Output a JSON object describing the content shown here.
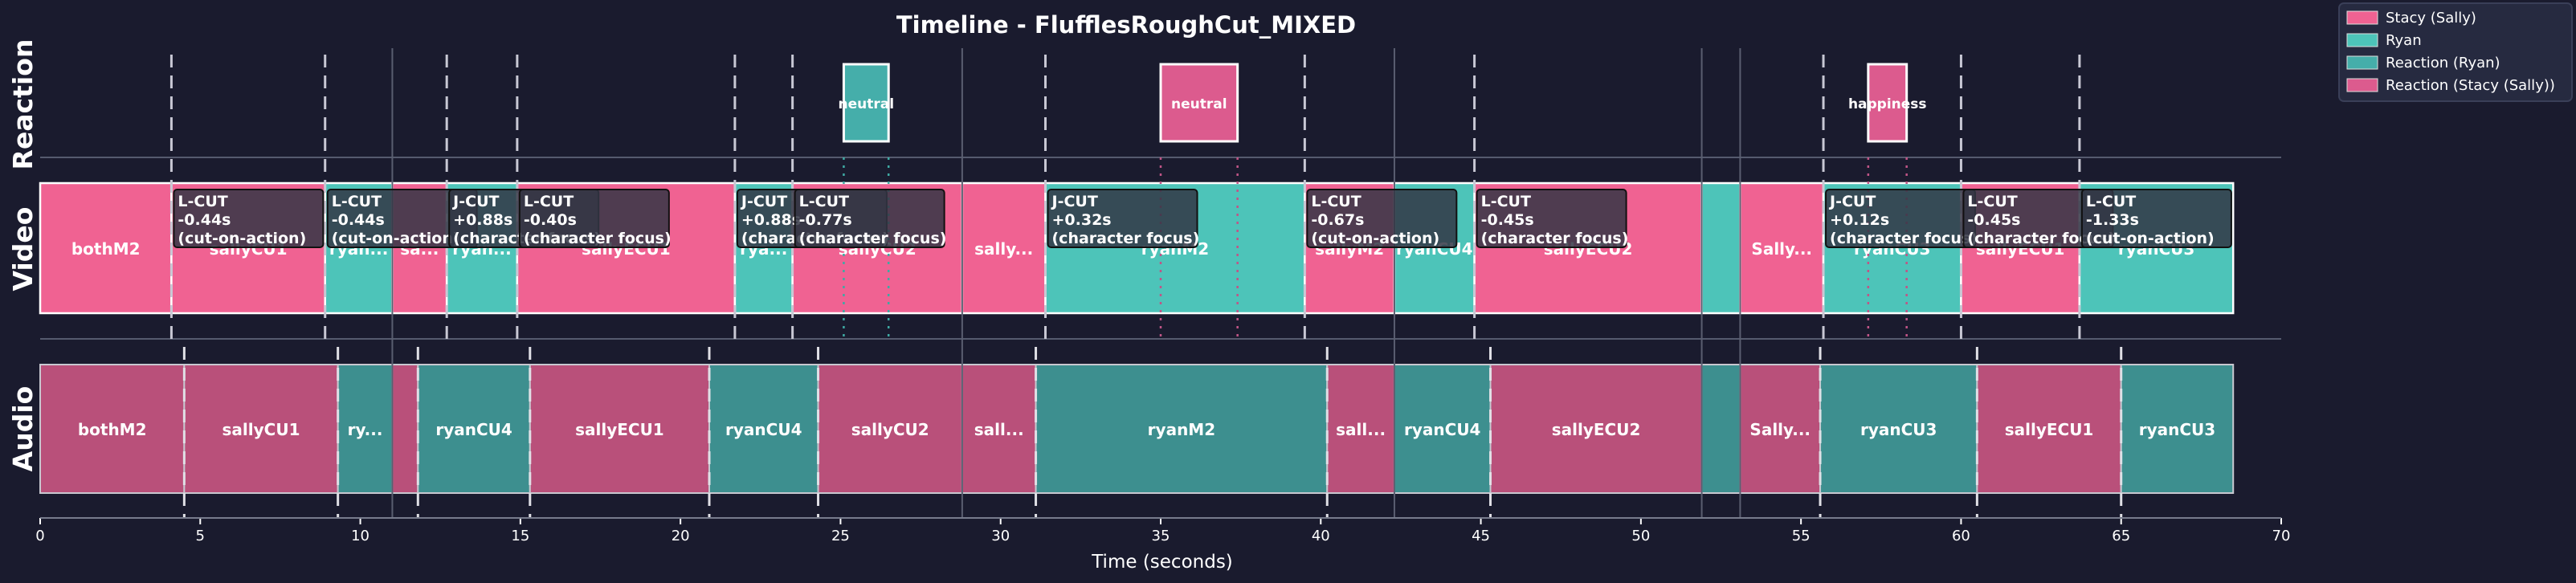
{
  "chart_data": {
    "type": "timeline",
    "title": "Timeline - FlufflesRoughCut_MIXED",
    "xlabel": "Time (seconds)",
    "xlim": [
      0,
      70
    ],
    "xticks": [
      0,
      5,
      10,
      15,
      20,
      25,
      30,
      35,
      40,
      45,
      50,
      55,
      60,
      65,
      70
    ],
    "tracks": [
      "Reaction",
      "Video",
      "Audio"
    ],
    "colors": {
      "background": "#1a1b2e",
      "stacy": "#f06292",
      "ryan": "#4dc4b9",
      "reaction_ryan": "#45aeaa",
      "reaction_stacy": "#dc5b8e",
      "audio_stacy": "#b9507a",
      "audio_ryan": "#3d8f8f"
    },
    "legend": {
      "position": "top-right",
      "items": [
        {
          "label": "Stacy (Sally)",
          "color": "#f06292"
        },
        {
          "label": "Ryan",
          "color": "#4dc4b9"
        },
        {
          "label": "Reaction (Ryan)",
          "color": "#45aeaa"
        },
        {
          "label": "Reaction (Stacy (Sally))",
          "color": "#dc5b8e"
        }
      ]
    },
    "reactions": [
      {
        "start": 25.1,
        "end": 26.5,
        "label": "neutral",
        "who": "ryan"
      },
      {
        "start": 35.0,
        "end": 37.4,
        "label": "neutral",
        "who": "stacy"
      },
      {
        "start": 57.1,
        "end": 58.3,
        "label": "happiness",
        "who": "stacy"
      }
    ],
    "video_clips": [
      {
        "start": 0.0,
        "end": 4.1,
        "label": "bothM2",
        "who": "stacy"
      },
      {
        "start": 4.1,
        "end": 8.9,
        "label": "sallyCU1",
        "who": "stacy"
      },
      {
        "start": 8.9,
        "end": 11.0,
        "label": "ryan...",
        "who": "ryan"
      },
      {
        "start": 11.0,
        "end": 12.7,
        "label": "sa...",
        "who": "stacy"
      },
      {
        "start": 12.7,
        "end": 14.9,
        "label": "ryan...",
        "who": "ryan"
      },
      {
        "start": 14.9,
        "end": 21.7,
        "label": "sallyECU1",
        "who": "stacy"
      },
      {
        "start": 21.7,
        "end": 23.5,
        "label": "rya...",
        "who": "ryan"
      },
      {
        "start": 23.5,
        "end": 28.8,
        "label": "sallyCU2",
        "who": "stacy"
      },
      {
        "start": 28.8,
        "end": 31.4,
        "label": "sally...",
        "who": "stacy"
      },
      {
        "start": 31.4,
        "end": 39.5,
        "label": "ryanM2",
        "who": "ryan"
      },
      {
        "start": 39.5,
        "end": 42.3,
        "label": "sallyM2",
        "who": "stacy"
      },
      {
        "start": 42.3,
        "end": 44.8,
        "label": "ryanCU4",
        "who": "ryan"
      },
      {
        "start": 44.8,
        "end": 51.9,
        "label": "sallyECU2",
        "who": "stacy"
      },
      {
        "start": 51.9,
        "end": 53.1,
        "label": "",
        "who": "ryan"
      },
      {
        "start": 53.1,
        "end": 55.7,
        "label": "Sally...",
        "who": "stacy"
      },
      {
        "start": 55.7,
        "end": 60.0,
        "label": "ryanCU3",
        "who": "ryan"
      },
      {
        "start": 60.0,
        "end": 63.7,
        "label": "sallyECU1",
        "who": "stacy"
      },
      {
        "start": 63.7,
        "end": 68.5,
        "label": "ryanCU3",
        "who": "ryan"
      }
    ],
    "audio_clips": [
      {
        "start": 0.0,
        "end": 4.5,
        "label": "bothM2",
        "who": "stacy"
      },
      {
        "start": 4.5,
        "end": 9.3,
        "label": "sallyCU1",
        "who": "stacy"
      },
      {
        "start": 9.3,
        "end": 11.0,
        "label": "ry...",
        "who": "ryan"
      },
      {
        "start": 11.0,
        "end": 11.8,
        "label": "",
        "who": "stacy"
      },
      {
        "start": 11.8,
        "end": 15.3,
        "label": "ryanCU4",
        "who": "ryan"
      },
      {
        "start": 15.3,
        "end": 20.9,
        "label": "sallyECU1",
        "who": "stacy"
      },
      {
        "start": 20.9,
        "end": 24.3,
        "label": "ryanCU4",
        "who": "ryan"
      },
      {
        "start": 24.3,
        "end": 28.8,
        "label": "sallyCU2",
        "who": "stacy"
      },
      {
        "start": 28.8,
        "end": 31.1,
        "label": "sall...",
        "who": "stacy"
      },
      {
        "start": 31.1,
        "end": 40.2,
        "label": "ryanM2",
        "who": "ryan"
      },
      {
        "start": 40.2,
        "end": 42.3,
        "label": "sall...",
        "who": "stacy"
      },
      {
        "start": 42.3,
        "end": 45.3,
        "label": "ryanCU4",
        "who": "ryan"
      },
      {
        "start": 45.3,
        "end": 51.9,
        "label": "sallyECU2",
        "who": "stacy"
      },
      {
        "start": 51.9,
        "end": 53.1,
        "label": "",
        "who": "ryan"
      },
      {
        "start": 53.1,
        "end": 55.6,
        "label": "Sally...",
        "who": "stacy"
      },
      {
        "start": 55.6,
        "end": 60.5,
        "label": "ryanCU3",
        "who": "ryan"
      },
      {
        "start": 60.5,
        "end": 65.0,
        "label": "sallyECU1",
        "who": "stacy"
      },
      {
        "start": 65.0,
        "end": 68.5,
        "label": "ryanCU3",
        "who": "ryan"
      }
    ],
    "section_boundaries": [
      11.0,
      28.8,
      42.3,
      51.9,
      53.1
    ],
    "cut_markers": [
      4.1,
      8.9,
      12.7,
      14.9,
      21.7,
      23.5,
      31.4,
      39.5,
      44.8,
      55.7,
      60.0,
      63.7
    ],
    "audio_markers": [
      4.5,
      9.3,
      11.8,
      15.3,
      20.9,
      24.3,
      31.1,
      40.2,
      45.3,
      55.6,
      60.5,
      65.0
    ],
    "reaction_guides": [
      {
        "x": 25.1,
        "who": "ryan"
      },
      {
        "x": 26.5,
        "who": "ryan"
      },
      {
        "x": 35.0,
        "who": "stacy"
      },
      {
        "x": 37.4,
        "who": "stacy"
      },
      {
        "x": 57.1,
        "who": "stacy"
      },
      {
        "x": 58.3,
        "who": "stacy"
      }
    ],
    "annotations": [
      {
        "x": 4.1,
        "lines": [
          "L-CUT",
          "-0.44s",
          "(cut-on-action)"
        ]
      },
      {
        "x": 8.9,
        "lines": [
          "L-CUT",
          "-0.44s",
          "(cut-on-action)"
        ]
      },
      {
        "x": 12.7,
        "lines": [
          "J-CUT",
          "+0.88s",
          "(character focus)"
        ]
      },
      {
        "x": 14.9,
        "lines": [
          "L-CUT",
          "-0.40s",
          "(character focus)"
        ]
      },
      {
        "x": 21.7,
        "lines": [
          "J-CUT",
          "+0.88s",
          "(character focus)"
        ]
      },
      {
        "x": 23.5,
        "lines": [
          "L-CUT",
          "-0.77s",
          "(character focus)"
        ]
      },
      {
        "x": 31.4,
        "lines": [
          "J-CUT",
          "+0.32s",
          "(character focus)"
        ]
      },
      {
        "x": 39.5,
        "lines": [
          "L-CUT",
          "-0.67s",
          "(cut-on-action)"
        ]
      },
      {
        "x": 44.8,
        "lines": [
          "L-CUT",
          "-0.45s",
          "(character focus)"
        ]
      },
      {
        "x": 55.7,
        "lines": [
          "J-CUT",
          "+0.12s",
          "(character focus)"
        ]
      },
      {
        "x": 60.0,
        "lines": [
          "L-CUT",
          "-0.45s",
          "(character focus)"
        ]
      },
      {
        "x": 63.7,
        "lines": [
          "L-CUT",
          "-1.33s",
          "(cut-on-action)"
        ]
      }
    ]
  }
}
